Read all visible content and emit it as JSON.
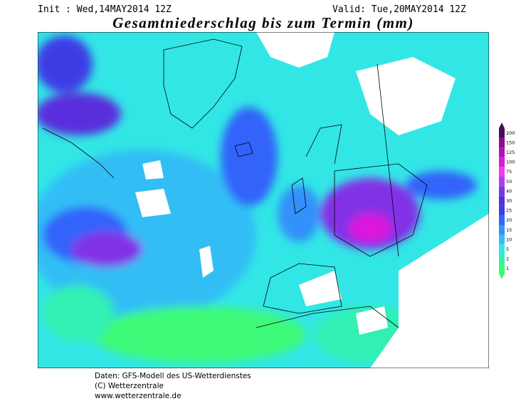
{
  "header": {
    "init": "Init : Wed,14MAY2014 12Z",
    "valid": "Valid: Tue,20MAY2014 12Z",
    "title": "Gesamtniederschlag bis zum Termin (mm)"
  },
  "legend": {
    "entries": [
      {
        "label": 200,
        "color": "#4b0a5c"
      },
      {
        "label": 150,
        "color": "#8c0c8c"
      },
      {
        "label": 125,
        "color": "#b410b4"
      },
      {
        "label": 100,
        "color": "#dc18dc"
      },
      {
        "label": 75,
        "color": "#f03cf0"
      },
      {
        "label": 50,
        "color": "#b43cf0"
      },
      {
        "label": 40,
        "color": "#8232e6"
      },
      {
        "label": 30,
        "color": "#5a2ddc"
      },
      {
        "label": 25,
        "color": "#3c3ce6"
      },
      {
        "label": 20,
        "color": "#3264fa"
      },
      {
        "label": 15,
        "color": "#3291fa"
      },
      {
        "label": 10,
        "color": "#32bef5"
      },
      {
        "label": 5,
        "color": "#32e6e6"
      },
      {
        "label": 2,
        "color": "#32f0b4"
      },
      {
        "label": 1,
        "color": "#3cfa78"
      }
    ]
  },
  "footer": {
    "lines": [
      "Daten: GFS-Modell des US-Wetterdienstes",
      "(C) Wetterzentrale",
      "www.wetterzentrale.de"
    ]
  }
}
